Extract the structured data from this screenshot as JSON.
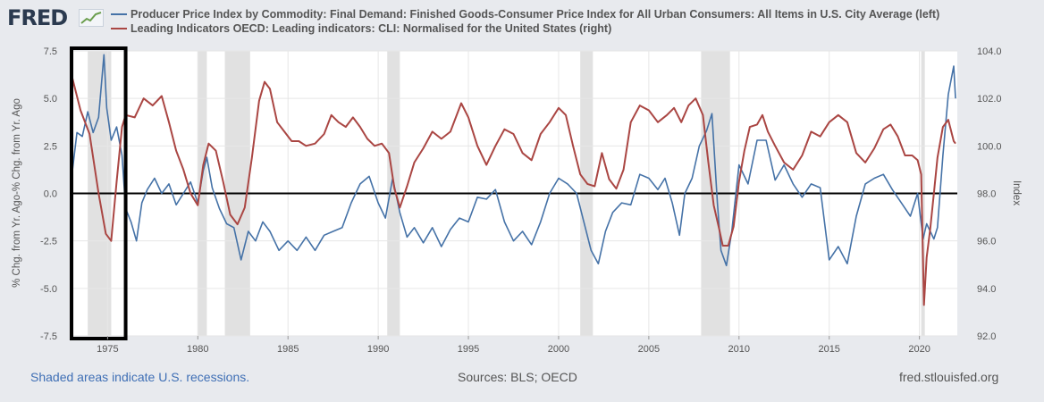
{
  "header": {
    "logo_text": "FRED"
  },
  "footer": {
    "recession_note": "Shaded areas indicate U.S. recessions.",
    "sources": "Sources: BLS; OECD",
    "site": "fred.stlouisfed.org"
  },
  "colors": {
    "series1": "#4572a7",
    "series2": "#aa4643",
    "recession": "#e1e1e1",
    "zero_line": "#000000",
    "highlight_box": "#000000"
  },
  "chart_data": {
    "type": "line",
    "title": "",
    "xlabel": "",
    "ylabel_left": "% Chg. from Yr. Ago-% Chg. from Yr. Ago",
    "ylabel_right": "Index",
    "xlim": [
      1972.9,
      2022.1
    ],
    "ylim_left": [
      -7.5,
      7.5
    ],
    "ylim_right": [
      92.0,
      104.0
    ],
    "x_ticks": [
      1975,
      1980,
      1985,
      1990,
      1995,
      2000,
      2005,
      2010,
      2015,
      2020
    ],
    "y_ticks_left": [
      7.5,
      5.0,
      2.5,
      0.0,
      -2.5,
      -5.0,
      -7.5
    ],
    "y_tick_labels_left": [
      "7.5",
      "5.0",
      "2.5",
      "0.0",
      "-2.5",
      "-5.0",
      "-7.5"
    ],
    "y_ticks_right": [
      104.0,
      102.0,
      100.0,
      98.0,
      96.0,
      94.0,
      92.0
    ],
    "y_tick_labels_right": [
      "104.0",
      "102.0",
      "100.0",
      "98.0",
      "96.0",
      "94.0",
      "92.0"
    ],
    "recessions": [
      [
        1973.9,
        1975.2
      ],
      [
        1980.0,
        1980.5
      ],
      [
        1981.5,
        1982.9
      ],
      [
        1990.5,
        1991.2
      ],
      [
        2001.2,
        2001.9
      ],
      [
        2007.9,
        2009.5
      ],
      [
        2020.1,
        2020.3
      ]
    ],
    "highlight_box": {
      "x_start": 1973.0,
      "x_end": 1976.0
    },
    "series": [
      {
        "name": "Producer Price Index by Commodity: Final Demand: Finished Goods-Consumer Price Index for All Urban Consumers: All Items in U.S. City Average (left)",
        "axis": "left",
        "x": [
          1973.0,
          1973.3,
          1973.6,
          1973.9,
          1974.2,
          1974.5,
          1974.8,
          1974.95,
          1975.2,
          1975.5,
          1975.8,
          1976.0,
          1976.3,
          1976.6,
          1976.9,
          1977.2,
          1977.6,
          1978.0,
          1978.4,
          1978.8,
          1979.2,
          1979.6,
          1980.0,
          1980.3,
          1980.5,
          1980.8,
          1981.2,
          1981.6,
          1982.0,
          1982.4,
          1982.8,
          1983.2,
          1983.6,
          1984.0,
          1984.5,
          1985.0,
          1985.5,
          1986.0,
          1986.5,
          1987.0,
          1987.5,
          1988.0,
          1988.5,
          1989.0,
          1989.5,
          1990.0,
          1990.4,
          1990.8,
          1991.2,
          1991.6,
          1992.0,
          1992.5,
          1993.0,
          1993.5,
          1994.0,
          1994.5,
          1995.0,
          1995.5,
          1996.0,
          1996.5,
          1997.0,
          1997.5,
          1998.0,
          1998.5,
          1999.0,
          1999.5,
          2000.0,
          2000.5,
          2001.0,
          2001.4,
          2001.8,
          2002.2,
          2002.6,
          2003.0,
          2003.5,
          2004.0,
          2004.5,
          2005.0,
          2005.5,
          2005.9,
          2006.3,
          2006.7,
          2007.0,
          2007.4,
          2007.8,
          2008.2,
          2008.5,
          2008.8,
          2009.0,
          2009.3,
          2009.6,
          2010.0,
          2010.5,
          2011.0,
          2011.5,
          2012.0,
          2012.5,
          2013.0,
          2013.5,
          2014.0,
          2014.5,
          2015.0,
          2015.5,
          2016.0,
          2016.5,
          2017.0,
          2017.5,
          2018.0,
          2018.5,
          2019.0,
          2019.5,
          2019.9,
          2020.2,
          2020.4,
          2020.8,
          2021.0,
          2021.3,
          2021.6,
          2021.9,
          2022.0
        ],
        "values": [
          0.8,
          3.2,
          3.0,
          4.3,
          3.2,
          4.0,
          7.3,
          4.5,
          2.8,
          3.5,
          2.0,
          -0.8,
          -1.5,
          -2.5,
          -0.5,
          0.2,
          0.8,
          0.0,
          0.5,
          -0.6,
          0.0,
          0.6,
          -0.5,
          1.2,
          1.9,
          0.3,
          -0.8,
          -1.6,
          -1.8,
          -3.5,
          -2.0,
          -2.5,
          -1.5,
          -2.0,
          -3.0,
          -2.5,
          -3.0,
          -2.3,
          -3.0,
          -2.2,
          -2.0,
          -1.8,
          -0.5,
          0.5,
          0.9,
          -0.5,
          -1.3,
          0.8,
          -1.0,
          -2.3,
          -1.8,
          -2.6,
          -1.8,
          -2.8,
          -1.9,
          -1.3,
          -1.5,
          -0.2,
          -0.3,
          0.2,
          -1.5,
          -2.5,
          -2.0,
          -2.7,
          -1.5,
          0.0,
          0.8,
          0.5,
          0.0,
          -1.5,
          -3.0,
          -3.7,
          -2.0,
          -1.0,
          -0.5,
          -0.6,
          1.0,
          0.8,
          0.2,
          0.8,
          -0.5,
          -2.2,
          0.0,
          0.8,
          2.5,
          3.3,
          4.2,
          -0.5,
          -3.0,
          -3.8,
          -2.0,
          1.5,
          0.5,
          2.8,
          2.8,
          0.7,
          1.5,
          0.5,
          -0.2,
          0.5,
          0.3,
          -3.5,
          -2.8,
          -3.7,
          -1.2,
          0.5,
          0.8,
          1.0,
          0.2,
          -0.5,
          -1.2,
          0.0,
          -2.4,
          -1.6,
          -2.4,
          -1.8,
          2.0,
          5.2,
          6.7,
          5.0
        ]
      },
      {
        "name": "Leading Indicators OECD: Leading indicators: CLI: Normalised for the United States (right)",
        "axis": "right",
        "x": [
          1973.0,
          1973.5,
          1974.0,
          1974.5,
          1974.9,
          1975.2,
          1975.5,
          1975.8,
          1976.0,
          1976.5,
          1977.0,
          1977.5,
          1978.0,
          1978.4,
          1978.8,
          1979.2,
          1979.6,
          1980.0,
          1980.3,
          1980.6,
          1981.0,
          1981.4,
          1981.8,
          1982.2,
          1982.6,
          1983.0,
          1983.4,
          1983.7,
          1984.0,
          1984.4,
          1984.8,
          1985.2,
          1985.6,
          1986.0,
          1986.5,
          1987.0,
          1987.4,
          1987.8,
          1988.2,
          1988.6,
          1989.0,
          1989.4,
          1989.8,
          1990.2,
          1990.6,
          1990.9,
          1991.2,
          1991.6,
          1992.0,
          1992.5,
          1993.0,
          1993.5,
          1994.0,
          1994.6,
          1995.0,
          1995.5,
          1996.0,
          1996.5,
          1997.0,
          1997.5,
          1998.0,
          1998.5,
          1999.0,
          1999.5,
          2000.0,
          2000.4,
          2000.8,
          2001.2,
          2001.6,
          2002.0,
          2002.4,
          2002.8,
          2003.2,
          2003.6,
          2004.0,
          2004.5,
          2005.0,
          2005.5,
          2006.0,
          2006.4,
          2006.8,
          2007.2,
          2007.6,
          2008.0,
          2008.3,
          2008.6,
          2008.9,
          2009.1,
          2009.4,
          2009.7,
          2010.0,
          2010.3,
          2010.6,
          2011.0,
          2011.3,
          2011.6,
          2012.0,
          2012.5,
          2013.0,
          2013.5,
          2014.0,
          2014.5,
          2015.0,
          2015.5,
          2016.0,
          2016.5,
          2017.0,
          2017.5,
          2018.0,
          2018.4,
          2018.8,
          2019.2,
          2019.6,
          2019.9,
          2020.1,
          2020.25,
          2020.4,
          2020.6,
          2020.8,
          2021.0,
          2021.3,
          2021.6,
          2021.9,
          2022.0
        ],
        "values": [
          103.0,
          101.5,
          100.5,
          98.0,
          96.3,
          96.0,
          98.5,
          100.8,
          101.3,
          101.2,
          102.0,
          101.7,
          102.1,
          101.0,
          99.8,
          99.0,
          98.0,
          97.5,
          99.2,
          100.1,
          99.8,
          98.5,
          97.1,
          96.7,
          97.4,
          99.5,
          101.9,
          102.7,
          102.4,
          101.0,
          100.6,
          100.2,
          100.2,
          100.0,
          100.1,
          100.5,
          101.3,
          101.0,
          100.8,
          101.2,
          100.8,
          100.3,
          100.0,
          100.1,
          99.7,
          98.2,
          97.4,
          98.3,
          99.3,
          99.9,
          100.6,
          100.3,
          100.6,
          101.8,
          101.2,
          100.0,
          99.2,
          100.0,
          100.7,
          100.5,
          99.7,
          99.4,
          100.5,
          101.0,
          101.6,
          101.3,
          100.0,
          98.8,
          98.4,
          98.3,
          99.7,
          98.6,
          98.2,
          99.0,
          101.0,
          101.7,
          101.5,
          101.0,
          101.3,
          101.6,
          101.0,
          101.7,
          102.0,
          101.3,
          99.3,
          97.5,
          96.5,
          95.8,
          95.8,
          96.6,
          98.5,
          99.8,
          100.8,
          100.9,
          101.3,
          100.6,
          100.0,
          99.3,
          99.0,
          99.6,
          100.6,
          100.4,
          101.0,
          101.3,
          101.0,
          99.7,
          99.3,
          99.9,
          100.7,
          100.9,
          100.4,
          99.6,
          99.6,
          99.4,
          98.8,
          93.3,
          95.3,
          96.5,
          98.0,
          99.5,
          100.8,
          101.1,
          100.2,
          100.1
        ]
      }
    ]
  }
}
